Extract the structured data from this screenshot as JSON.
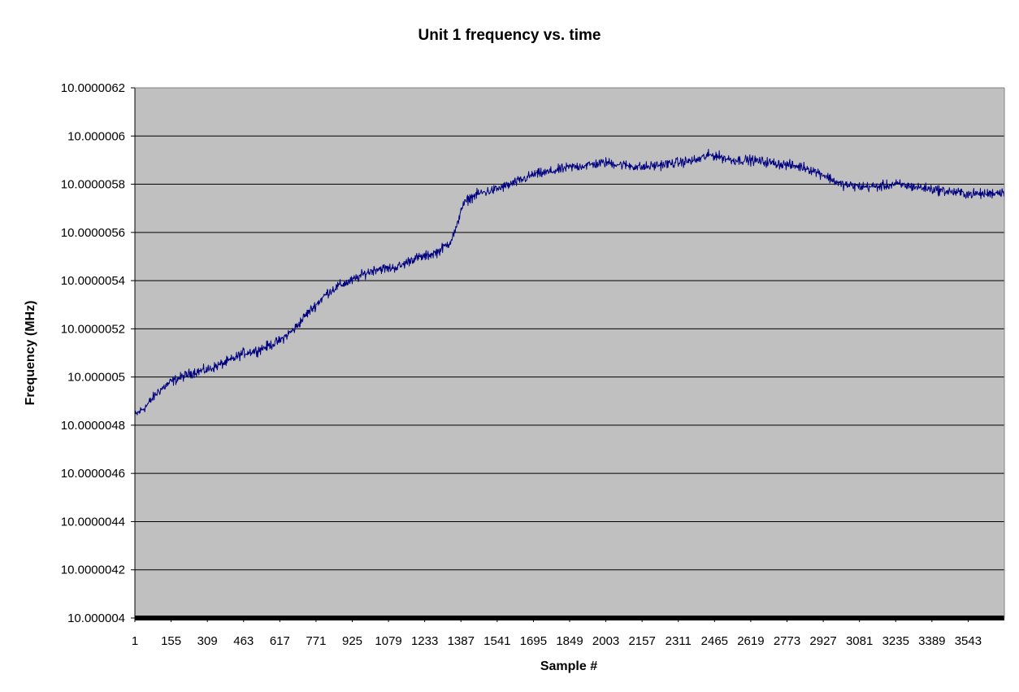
{
  "chart_data": {
    "type": "line",
    "title": "Unit 1 frequency vs. time",
    "xlabel": "Sample #",
    "ylabel": "Frequency (MHz)",
    "xlim": [
      1,
      3697
    ],
    "ylim": [
      10.000004,
      10.0000062
    ],
    "x_tick_labels": [
      "1",
      "155",
      "309",
      "463",
      "617",
      "771",
      "925",
      "1079",
      "1233",
      "1387",
      "1541",
      "1695",
      "1849",
      "2003",
      "2157",
      "2311",
      "2465",
      "2619",
      "2773",
      "2927",
      "3081",
      "3235",
      "3389",
      "3543"
    ],
    "y_tick_labels": [
      "10.000004",
      "10.0000042",
      "10.0000044",
      "10.0000046",
      "10.0000048",
      "10.000005",
      "10.0000052",
      "10.0000054",
      "10.0000056",
      "10.0000058",
      "10.000006",
      "10.0000062"
    ],
    "grid": true,
    "legend": "none",
    "colors": {
      "plot_background": "#c0c0c0",
      "line": "#000080",
      "grid": "#000000"
    },
    "series": [
      {
        "x": [
          1,
          50,
          100,
          155,
          200,
          250,
          309,
          360,
          410,
          463,
          520,
          570,
          617,
          680,
          730,
          771,
          820,
          870,
          925,
          980,
          1030,
          1079,
          1130,
          1180,
          1233,
          1290,
          1340,
          1370,
          1387,
          1420,
          1460,
          1500,
          1541,
          1600,
          1650,
          1695,
          1760,
          1849,
          1930,
          2003,
          2080,
          2157,
          2230,
          2311,
          2390,
          2440,
          2465,
          2540,
          2619,
          2700,
          2773,
          2850,
          2927,
          3000,
          3081,
          3160,
          3235,
          3310,
          3389,
          3460,
          3543,
          3620,
          3697
        ],
        "values": [
          10.00000484,
          10.00000488,
          10.00000494,
          10.00000498,
          10.000005,
          10.00000502,
          10.00000503,
          10.00000505,
          10.00000507,
          10.0000051,
          10.00000511,
          10.00000513,
          10.00000515,
          10.0000052,
          10.00000526,
          10.0000053,
          10.00000535,
          10.00000538,
          10.0000054,
          10.00000543,
          10.00000545,
          10.00000545,
          10.00000546,
          10.00000549,
          10.0000055,
          10.00000552,
          10.00000556,
          10.00000562,
          10.0000057,
          10.00000574,
          10.00000576,
          10.00000577,
          10.00000578,
          10.0000058,
          10.00000582,
          10.00000584,
          10.00000585,
          10.00000587,
          10.00000588,
          10.00000589,
          10.00000588,
          10.00000587,
          10.00000588,
          10.00000589,
          10.0000059,
          10.00000592,
          10.00000592,
          10.0000059,
          10.0000059,
          10.00000589,
          10.00000588,
          10.00000587,
          10.00000584,
          10.0000058,
          10.00000579,
          10.00000579,
          10.0000058,
          10.00000579,
          10.00000578,
          10.00000577,
          10.00000576,
          10.00000576,
          10.00000577
        ]
      }
    ]
  }
}
